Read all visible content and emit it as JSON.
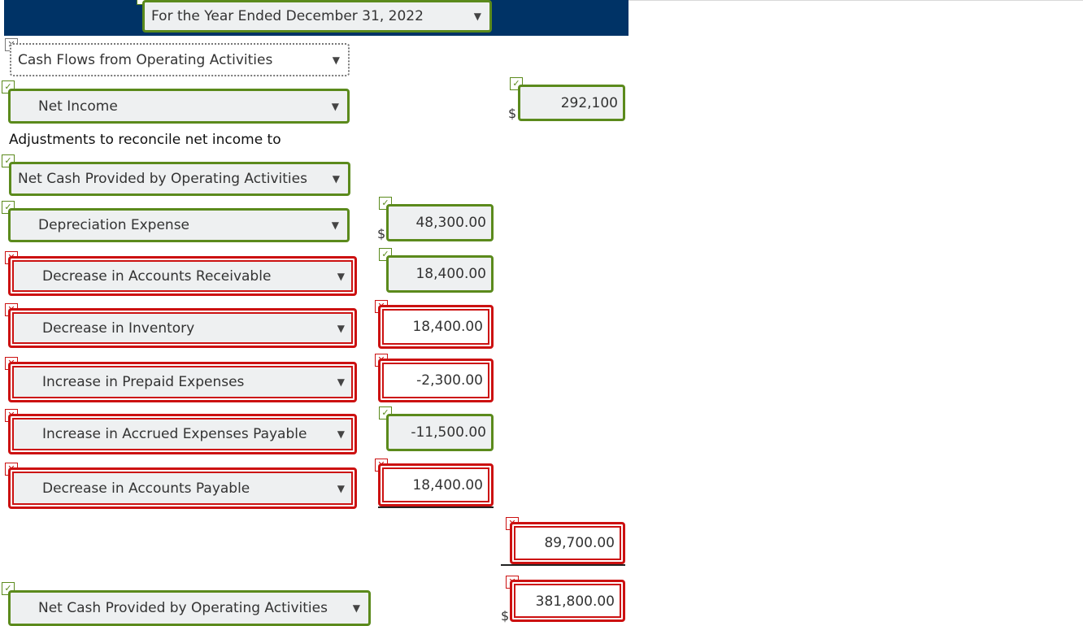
{
  "header": {
    "period_select": "For the Year Ended December 31, 2022"
  },
  "rows": {
    "section": "Cash Flows from Operating Activities",
    "net_income": {
      "label": "Net Income",
      "value": "292,100",
      "currency": "$"
    },
    "adjust_text": "Adjustments to reconcile net income to",
    "adjust_select": "Net Cash Provided by Operating Activities",
    "items": [
      {
        "label": "Depreciation Expense",
        "value": "48,300.00",
        "currency": "$"
      },
      {
        "label": "Decrease in Accounts Receivable",
        "value": "18,400.00"
      },
      {
        "label": "Decrease in Inventory",
        "value": "18,400.00"
      },
      {
        "label": "Increase in Prepaid Expenses",
        "value": "-2,300.00"
      },
      {
        "label": "Increase in Accrued Expenses Payable",
        "value": "-11,500.00"
      },
      {
        "label": "Decrease in Accounts Payable",
        "value": "18,400.00"
      }
    ],
    "subtotal": "89,700.00",
    "total": {
      "label": "Net Cash Provided by Operating Activities",
      "value": "381,800.00",
      "currency": "$"
    }
  },
  "icons": {
    "arrow": "▼",
    "check": "✓",
    "cross": "✕"
  },
  "colors": {
    "correct": "#5b8a1c",
    "incorrect": "#cc1111",
    "header": "#003366"
  }
}
